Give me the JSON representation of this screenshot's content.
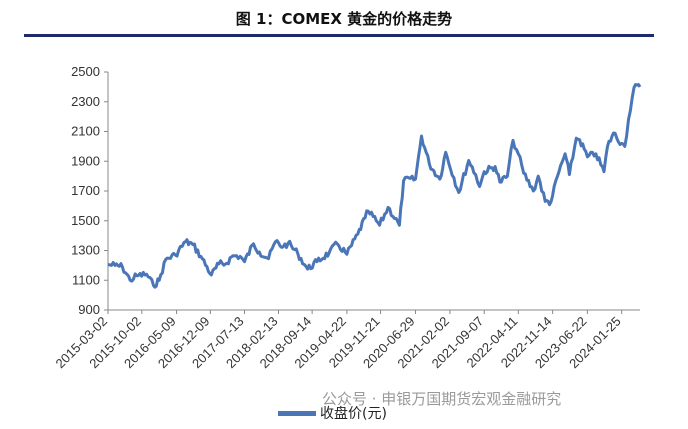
{
  "chart_data": {
    "type": "line",
    "title": "图 1：COMEX 黄金的价格走势",
    "ylim": [
      900,
      2500
    ],
    "yticks": [
      900,
      1100,
      1300,
      1500,
      1700,
      1900,
      2100,
      2300,
      2500
    ],
    "xlim": [
      "2015-03-02",
      "2024-05-20"
    ],
    "xticks": [
      "2015-03-02",
      "2015-10-02",
      "2016-05-09",
      "2016-12-09",
      "2017-07-13",
      "2018-02-13",
      "2018-09-14",
      "2019-04-22",
      "2019-11-21",
      "2020-06-29",
      "2021-02-02",
      "2021-09-07",
      "2022-04-11",
      "2022-11-14",
      "2023-06-22",
      "2024-01-25"
    ],
    "grid": false,
    "legend": "bottom",
    "series": [
      {
        "name": "收盘价(元)",
        "color": "#4a76b8",
        "points": [
          [
            "2015-03-02",
            1205
          ],
          [
            "2015-04-15",
            1200
          ],
          [
            "2015-06-01",
            1190
          ],
          [
            "2015-07-20",
            1100
          ],
          [
            "2015-09-01",
            1130
          ],
          [
            "2015-11-01",
            1140
          ],
          [
            "2015-12-15",
            1065
          ],
          [
            "2016-01-20",
            1100
          ],
          [
            "2016-03-01",
            1240
          ],
          [
            "2016-05-01",
            1270
          ],
          [
            "2016-07-05",
            1360
          ],
          [
            "2016-08-20",
            1340
          ],
          [
            "2016-10-10",
            1260
          ],
          [
            "2016-12-15",
            1135
          ],
          [
            "2017-02-01",
            1210
          ],
          [
            "2017-03-15",
            1210
          ],
          [
            "2017-05-01",
            1265
          ],
          [
            "2017-06-15",
            1260
          ],
          [
            "2017-07-13",
            1225
          ],
          [
            "2017-09-08",
            1345
          ],
          [
            "2017-10-15",
            1290
          ],
          [
            "2017-12-12",
            1245
          ],
          [
            "2018-01-25",
            1360
          ],
          [
            "2018-03-15",
            1325
          ],
          [
            "2018-04-15",
            1350
          ],
          [
            "2018-06-15",
            1280
          ],
          [
            "2018-08-16",
            1175
          ],
          [
            "2018-10-15",
            1225
          ],
          [
            "2018-12-31",
            1285
          ],
          [
            "2019-02-20",
            1345
          ],
          [
            "2019-04-22",
            1275
          ],
          [
            "2019-06-30",
            1410
          ],
          [
            "2019-08-15",
            1520
          ],
          [
            "2019-09-04",
            1565
          ],
          [
            "2019-11-15",
            1470
          ],
          [
            "2020-01-08",
            1590
          ],
          [
            "2020-03-19",
            1470
          ],
          [
            "2020-04-15",
            1770
          ],
          [
            "2020-06-29",
            1780
          ],
          [
            "2020-08-06",
            2070
          ],
          [
            "2020-09-25",
            1880
          ],
          [
            "2020-11-30",
            1780
          ],
          [
            "2021-01-06",
            1960
          ],
          [
            "2021-03-30",
            1690
          ],
          [
            "2021-06-01",
            1905
          ],
          [
            "2021-07-15",
            1810
          ],
          [
            "2021-08-09",
            1730
          ],
          [
            "2021-09-07",
            1830
          ],
          [
            "2021-11-15",
            1865
          ],
          [
            "2021-12-15",
            1760
          ],
          [
            "2022-02-01",
            1800
          ],
          [
            "2022-03-08",
            2040
          ],
          [
            "2022-04-11",
            1950
          ],
          [
            "2022-05-15",
            1820
          ],
          [
            "2022-07-15",
            1700
          ],
          [
            "2022-08-15",
            1800
          ],
          [
            "2022-09-28",
            1630
          ],
          [
            "2022-11-03",
            1625
          ],
          [
            "2022-12-15",
            1800
          ],
          [
            "2023-02-01",
            1950
          ],
          [
            "2023-02-28",
            1810
          ],
          [
            "2023-04-13",
            2055
          ],
          [
            "2023-05-04",
            2045
          ],
          [
            "2023-06-22",
            1930
          ],
          [
            "2023-08-15",
            1950
          ],
          [
            "2023-10-05",
            1830
          ],
          [
            "2023-10-27",
            2000
          ],
          [
            "2023-12-04",
            2090
          ],
          [
            "2024-01-25",
            2020
          ],
          [
            "2024-02-14",
            2000
          ],
          [
            "2024-03-08",
            2180
          ],
          [
            "2024-04-12",
            2395
          ],
          [
            "2024-05-20",
            2400
          ]
        ]
      }
    ]
  },
  "watermark": "公众号 · 申银万国期货宏观金融研究"
}
